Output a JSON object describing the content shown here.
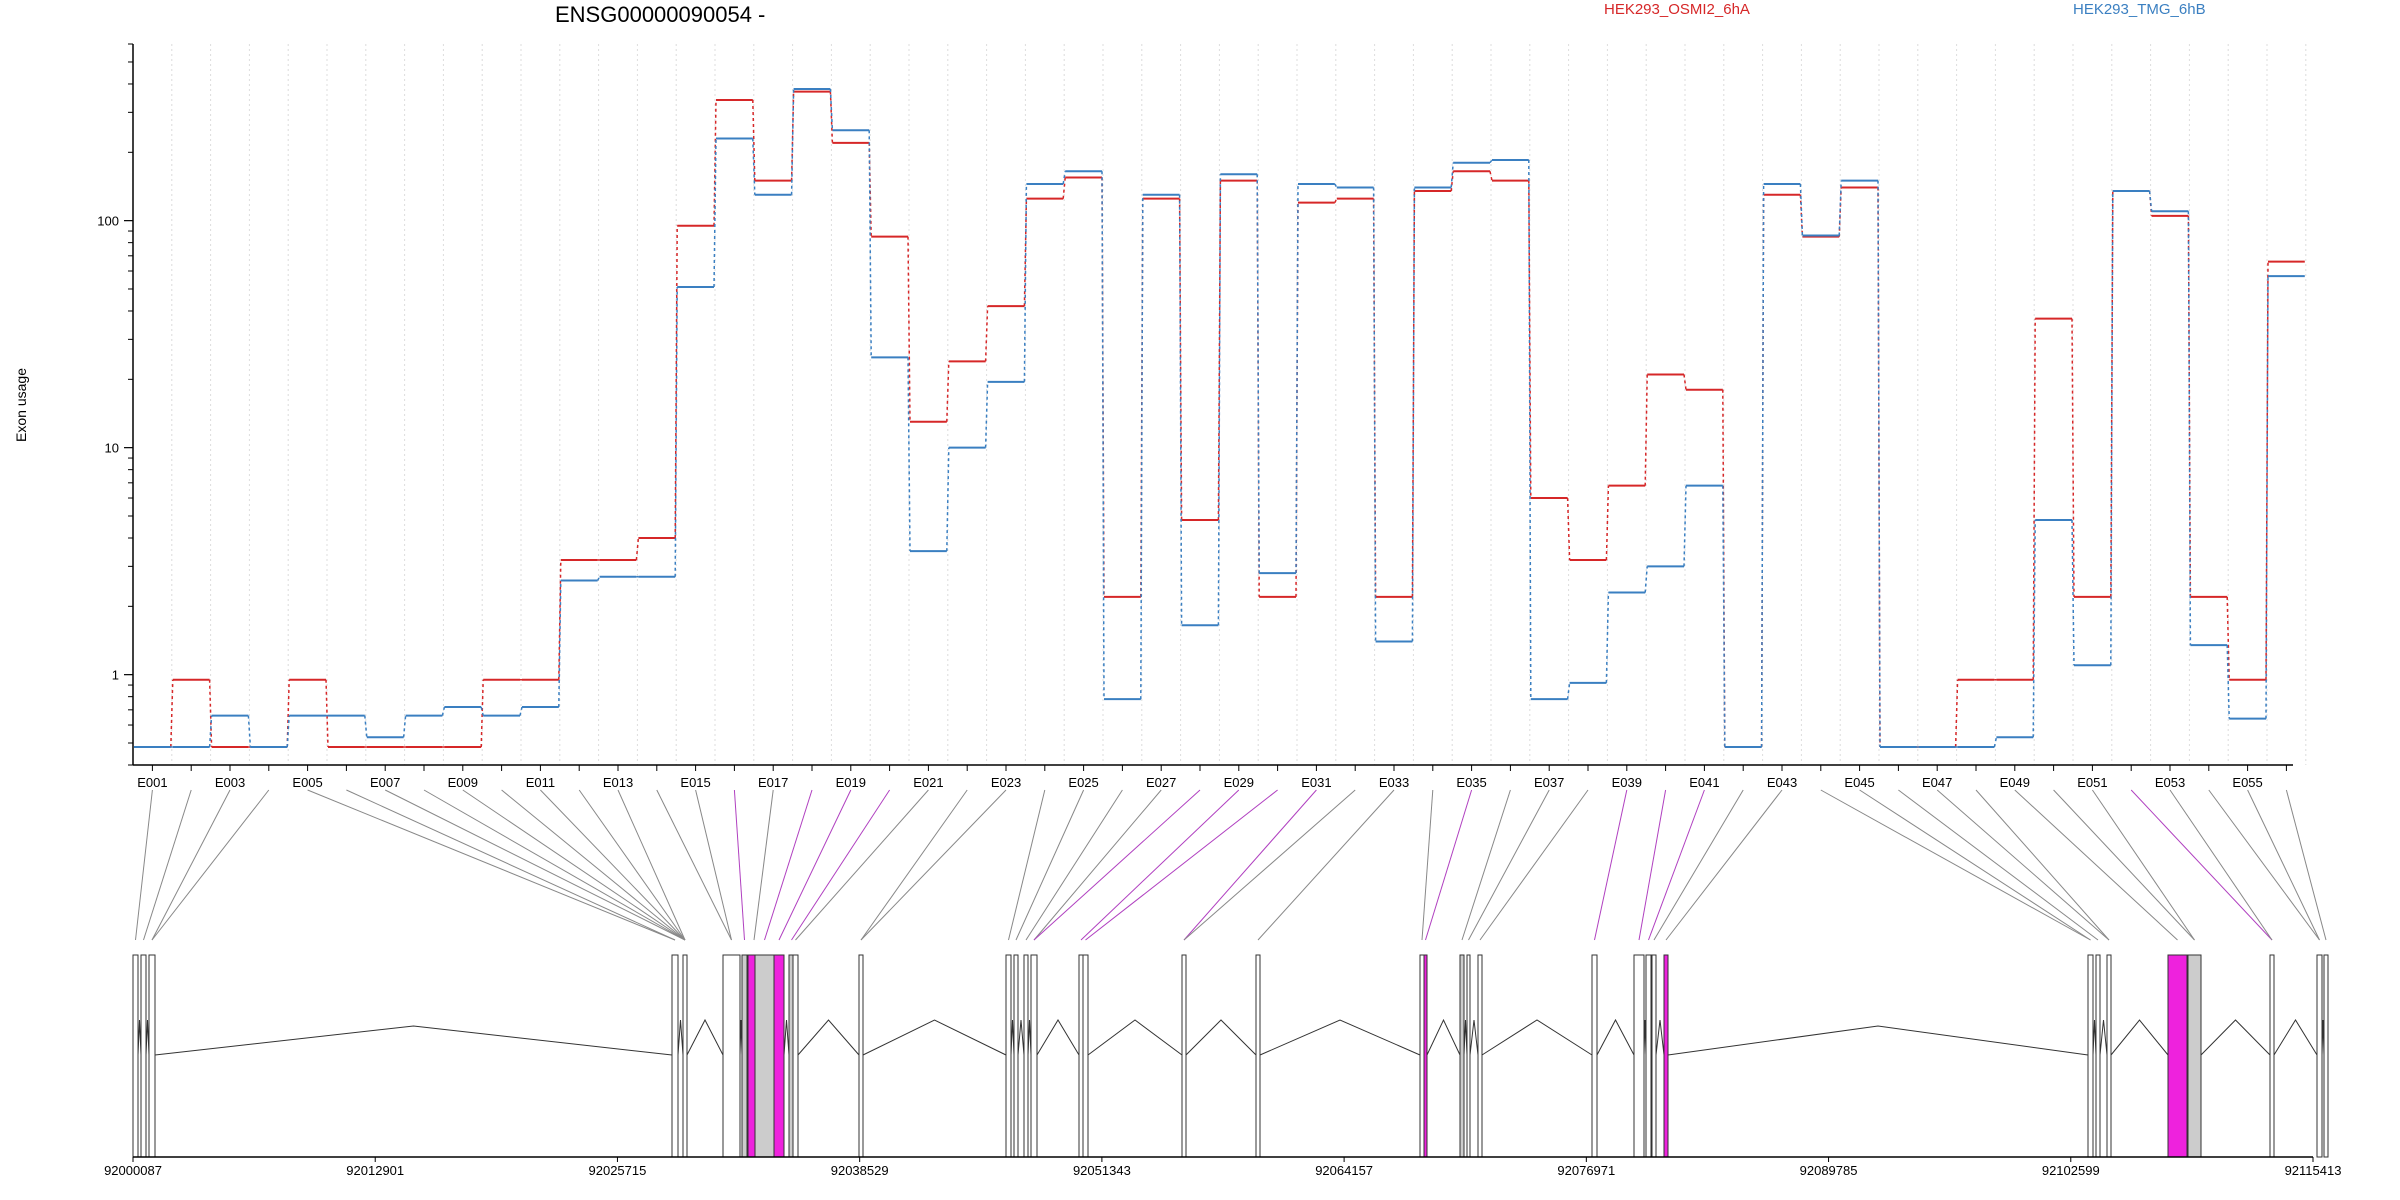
{
  "chart_data": {
    "type": "line",
    "title": "ENSG00000090054 -",
    "ylabel": "Exon usage",
    "xlabel": "",
    "yscale": "log",
    "ylim": [
      0.4,
      600
    ],
    "yticks": [
      {
        "value": 1,
        "label": "1"
      },
      {
        "value": 10,
        "label": "10"
      },
      {
        "value": 100,
        "label": "100"
      }
    ],
    "categories": [
      "E001",
      "E002",
      "E003",
      "E004",
      "E005",
      "E006",
      "E007",
      "E008",
      "E009",
      "E010",
      "E011",
      "E012",
      "E013",
      "E014",
      "E015",
      "E016",
      "E017",
      "E018",
      "E019",
      "E020",
      "E021",
      "E022",
      "E023",
      "E024",
      "E025",
      "E026",
      "E027",
      "E028",
      "E029",
      "E030",
      "E031",
      "E032",
      "E033",
      "E034",
      "E035",
      "E036",
      "E037",
      "E038",
      "E039",
      "E040",
      "E041",
      "E042",
      "E043",
      "E044",
      "E045",
      "E046",
      "E047",
      "E048",
      "E049",
      "E050",
      "E051",
      "E052",
      "E053",
      "E054",
      "E055",
      "E056"
    ],
    "tick_labels": [
      "E001",
      "E003",
      "E005",
      "E007",
      "E009",
      "E011",
      "E013",
      "E015",
      "E017",
      "E019",
      "E021",
      "E023",
      "E025",
      "E027",
      "E029",
      "E031",
      "E033",
      "E035",
      "E037",
      "E039",
      "E041",
      "E043",
      "E045",
      "E047",
      "E049",
      "E051",
      "E053",
      "E055"
    ],
    "grid": "vertical dotted lines at exon boundaries",
    "legend_position": "top",
    "series": [
      {
        "name": "HEK293_OSMI2_6hA",
        "color": "#d62728",
        "values": [
          0.48,
          0.95,
          0.48,
          0.48,
          0.95,
          0.48,
          0.48,
          0.48,
          0.48,
          0.95,
          0.95,
          3.2,
          3.2,
          4.0,
          95,
          340,
          150,
          370,
          220,
          85,
          13,
          24,
          42,
          125,
          155,
          2.2,
          125,
          4.8,
          150,
          2.2,
          120,
          125,
          2.2,
          135,
          165,
          150,
          6.0,
          3.2,
          6.8,
          21,
          18,
          0.48,
          130,
          85,
          140,
          0.48,
          0.48,
          0.95,
          0.95,
          37,
          2.2,
          135,
          105,
          2.2,
          0.95,
          66
        ]
      },
      {
        "name": "HEK293_TMG_6hB",
        "color": "#3a7fc1",
        "values": [
          0.48,
          0.48,
          0.66,
          0.48,
          0.66,
          0.66,
          0.53,
          0.66,
          0.72,
          0.66,
          0.72,
          2.6,
          2.7,
          2.7,
          51,
          230,
          130,
          380,
          250,
          25,
          3.5,
          10,
          19.5,
          145,
          165,
          0.78,
          130,
          1.65,
          160,
          2.8,
          145,
          140,
          1.4,
          140,
          180,
          185,
          0.78,
          0.92,
          2.3,
          3.0,
          6.8,
          0.48,
          145,
          86,
          150,
          0.48,
          0.48,
          0.48,
          0.53,
          4.8,
          1.1,
          135,
          110,
          1.35,
          0.64,
          57
        ]
      }
    ],
    "genomic_axis": {
      "tick_labels": [
        "92000087",
        "92012901",
        "92025715",
        "92038529",
        "92051343",
        "92064157",
        "92076971",
        "92089785",
        "92102599",
        "92115413"
      ],
      "range": [
        92000087,
        92115413
      ]
    },
    "highlight_color": "#ee22dd",
    "highlighted_exons": [
      "E016",
      "E018",
      "E019",
      "E020",
      "E028",
      "E029",
      "E030",
      "E031",
      "E035",
      "E039",
      "E040",
      "E041",
      "E052"
    ]
  }
}
